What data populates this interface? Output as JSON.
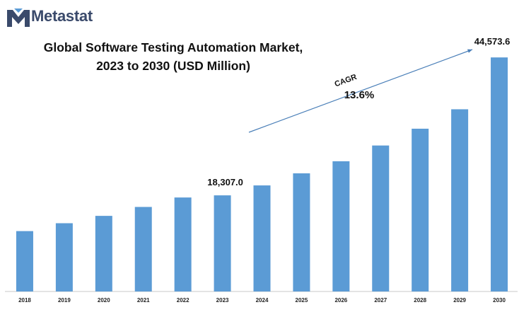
{
  "brand": {
    "name": "Metastat",
    "logo_icon": "metastat-m-logo-icon",
    "logo_color": "#3a4a6b"
  },
  "chart_data": {
    "type": "bar",
    "title_line1": "Global Software Testing Automation Market,",
    "title_line2": "2023 to 2030 (USD Million)",
    "xlabel": "",
    "ylabel": "",
    "categories": [
      "2018",
      "2019",
      "2020",
      "2021",
      "2022",
      "2023",
      "2024",
      "2025",
      "2026",
      "2027",
      "2028",
      "2029",
      "2030"
    ],
    "values": [
      11500,
      13000,
      14400,
      16100,
      17900,
      18307.0,
      20200,
      22500,
      24800,
      27800,
      31000,
      34700,
      44573.6
    ],
    "ylim": [
      0,
      45000
    ],
    "bar_color": "#5b9bd5",
    "grid": false,
    "legend": "none",
    "annotations": {
      "start_label": "18,307.0",
      "end_label": "44,573.6",
      "cagr_label": "CAGR",
      "cagr_value": "13.6%"
    }
  }
}
